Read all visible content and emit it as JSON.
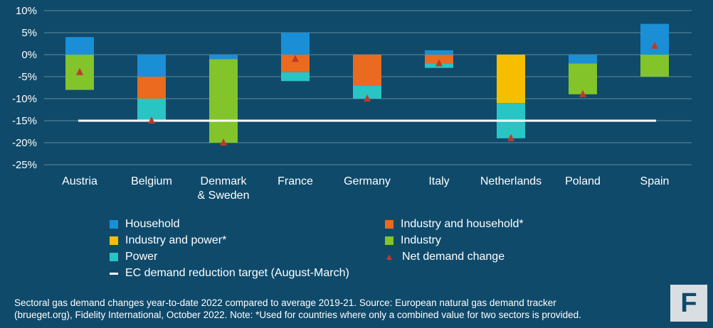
{
  "chart_data": {
    "type": "bar",
    "stacked": true,
    "categories": [
      "Austria",
      "Belgium",
      "Denmark\n& Sweden",
      "France",
      "Germany",
      "Italy",
      "Netherlands",
      "Poland",
      "Spain"
    ],
    "yticks": [
      "10%",
      "5%",
      "0%",
      "-5%",
      "-10%",
      "-15%",
      "-20%",
      "-25%"
    ],
    "ylim": [
      -25,
      10
    ],
    "grid": true,
    "series": [
      {
        "name": "Household",
        "color": "#1a8fd6",
        "values": [
          4,
          -5,
          -1,
          5,
          null,
          1,
          null,
          -2,
          7
        ]
      },
      {
        "name": "Industry and household*",
        "color": "#ea6a1f",
        "values": [
          null,
          -5,
          null,
          -4,
          -7,
          -2,
          null,
          null,
          null
        ]
      },
      {
        "name": "Industry and power*",
        "color": "#f7be00",
        "values": [
          null,
          null,
          null,
          null,
          null,
          null,
          -11,
          null,
          null
        ]
      },
      {
        "name": "Industry",
        "color": "#82c42a",
        "values": [
          -8,
          null,
          -19,
          null,
          null,
          null,
          null,
          -7,
          -5
        ]
      },
      {
        "name": "Power",
        "color": "#29c4c4",
        "values": [
          null,
          -5,
          null,
          -2,
          -3,
          -1,
          -8,
          null,
          null
        ]
      }
    ],
    "net_demand_change": {
      "name": "Net demand change",
      "color": "#c0392b",
      "values": [
        -4,
        -15,
        -20,
        -1,
        -10,
        -2,
        -19,
        -9,
        2
      ]
    },
    "target_line": {
      "name": "EC demand reduction target (August-March)",
      "value": -15,
      "color": "#ffffff"
    }
  },
  "footnote": {
    "line1": "Sectoral gas demand changes year-to-date 2022 compared to average 2019-21. Source: European natural gas demand tracker",
    "line2": "(brueget.org), Fidelity International, October 2022. Note: *Used for countries where only a combined value for two sectors is provided."
  },
  "logo": {
    "glyph": "F"
  }
}
